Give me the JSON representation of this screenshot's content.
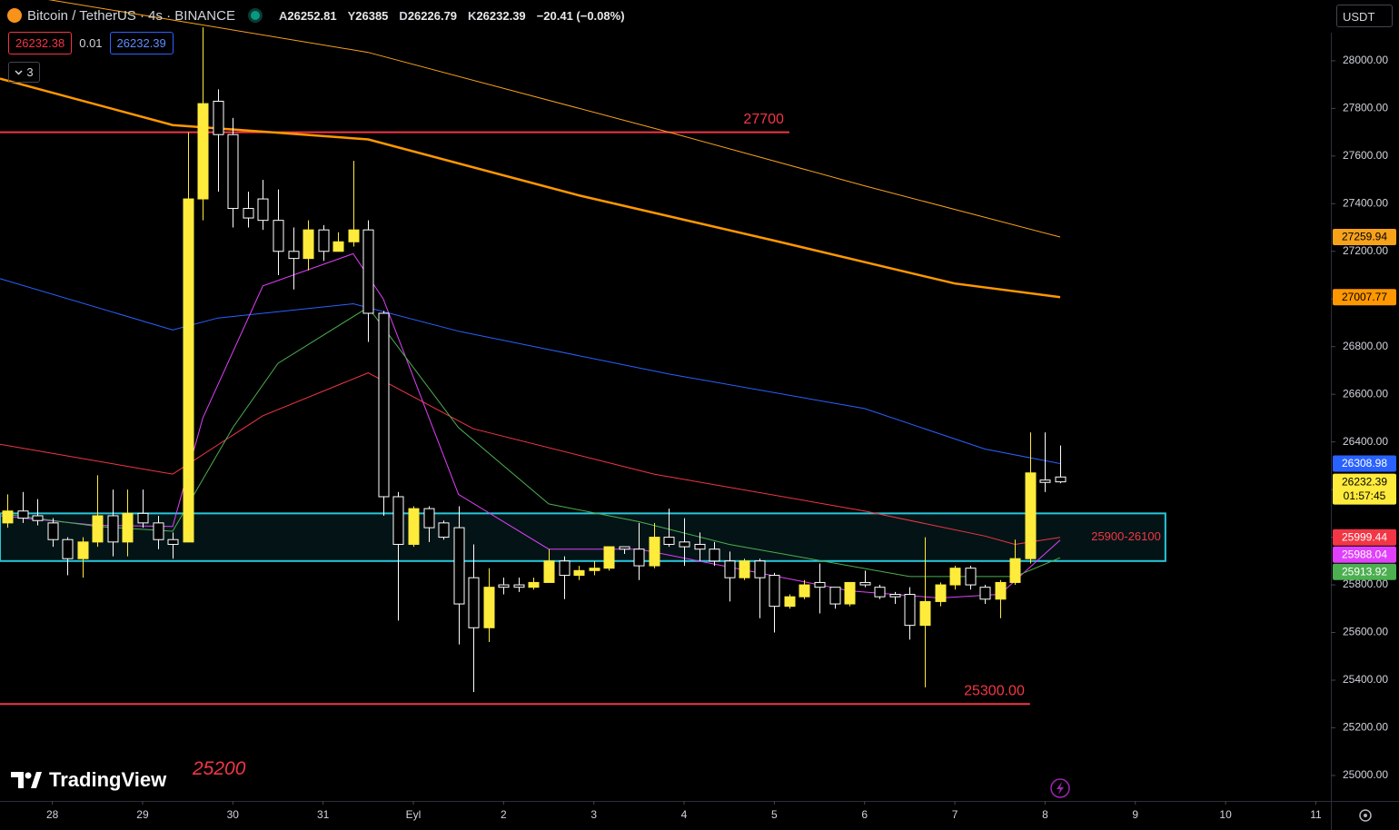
{
  "chart_data": {
    "type": "candlestick",
    "title": "Bitcoin / TetherUS · 4s · BINANCE",
    "ohlc_labels": [
      "A",
      "Y",
      "D",
      "K"
    ],
    "change": "−20.41 (−0.08%)",
    "currency": "USDT",
    "countdown": "01:57:45",
    "up_color": "#ffeb3b",
    "down_color": "#ffffff",
    "open": [
      26060,
      26110,
      26090,
      26060,
      25990,
      25910,
      25980,
      26090,
      25980,
      26100,
      26060,
      25990,
      25980,
      27420,
      27830,
      27690,
      27380,
      27420,
      27330,
      27200,
      27170,
      27290,
      27200,
      27240,
      27290,
      26940,
      26170,
      25970,
      26120,
      26060,
      26040,
      25830,
      25620,
      25800,
      25800,
      25790,
      25810,
      25900,
      25840,
      25860,
      25870,
      25960,
      25950,
      25880,
      26000,
      25980,
      25970,
      25950,
      25900,
      25830,
      25900,
      25840,
      25710,
      25750,
      25810,
      25790,
      25720,
      25810,
      25790,
      25760,
      25760,
      25630,
      25730,
      25800,
      25870,
      25790,
      25740,
      25810,
      25910,
      26240,
      26252.81
    ],
    "high": [
      26180,
      26190,
      26160,
      26080,
      26000,
      26000,
      26260,
      26200,
      26200,
      26200,
      26090,
      26020,
      27700,
      28140,
      27880,
      27760,
      27450,
      27500,
      27460,
      27300,
      27330,
      27310,
      27280,
      27580,
      27330,
      26950,
      26190,
      26130,
      26130,
      26070,
      26130,
      25970,
      25870,
      25830,
      25830,
      25830,
      25950,
      25920,
      25880,
      25900,
      25960,
      25960,
      26060,
      26060,
      26120,
      26080,
      26020,
      25980,
      25940,
      25910,
      25910,
      25850,
      25760,
      25820,
      25890,
      25790,
      25810,
      25860,
      25800,
      25770,
      25790,
      26000,
      25810,
      25880,
      25880,
      25800,
      25820,
      25990,
      26440,
      26440,
      26385
    ],
    "low": [
      26040,
      26060,
      26050,
      25960,
      25840,
      25830,
      25960,
      25920,
      25920,
      26040,
      25950,
      25910,
      25980,
      27330,
      27450,
      27300,
      27300,
      27290,
      27100,
      27040,
      27120,
      27160,
      27200,
      27220,
      26820,
      26090,
      25650,
      25960,
      25980,
      25990,
      25550,
      25350,
      25560,
      25760,
      25770,
      25780,
      25810,
      25740,
      25820,
      25840,
      25860,
      25930,
      25820,
      25870,
      25960,
      25880,
      25900,
      25880,
      25730,
      25820,
      25660,
      25600,
      25700,
      25740,
      25680,
      25700,
      25710,
      25790,
      25740,
      25720,
      25570,
      25370,
      25710,
      25780,
      25780,
      25720,
      25660,
      25800,
      25890,
      26190,
      26226.79
    ],
    "close": [
      26110,
      26080,
      26070,
      25990,
      25910,
      25980,
      26090,
      25980,
      26100,
      26060,
      25990,
      25970,
      27420,
      27820,
      27690,
      27380,
      27340,
      27330,
      27200,
      27170,
      27290,
      27200,
      27240,
      27290,
      26940,
      26170,
      25970,
      26120,
      26040,
      26000,
      25720,
      25620,
      25790,
      25790,
      25790,
      25810,
      25900,
      25840,
      25860,
      25870,
      25960,
      25950,
      25880,
      26000,
      25970,
      25960,
      25950,
      25900,
      25830,
      25900,
      25830,
      25710,
      25750,
      25800,
      25790,
      25720,
      25810,
      25800,
      25750,
      25750,
      25630,
      25730,
      25800,
      25870,
      25800,
      25740,
      25810,
      25910,
      26270,
      26230,
      26232.39
    ],
    "xlim": [
      -0.48,
      88
    ],
    "xticks": [
      {
        "value": 3,
        "label": "28"
      },
      {
        "value": 9,
        "label": "29"
      },
      {
        "value": 15,
        "label": "30"
      },
      {
        "value": 21,
        "label": "31"
      },
      {
        "value": 27,
        "label": "Eyl"
      },
      {
        "value": 33,
        "label": "2"
      },
      {
        "value": 39,
        "label": "3"
      },
      {
        "value": 45,
        "label": "4"
      },
      {
        "value": 51,
        "label": "5"
      },
      {
        "value": 57,
        "label": "6"
      },
      {
        "value": 63,
        "label": "7"
      },
      {
        "value": 69,
        "label": "8"
      },
      {
        "value": 75,
        "label": "9"
      },
      {
        "value": 81,
        "label": "10"
      },
      {
        "value": 87,
        "label": "11"
      }
    ],
    "ylim": [
      24893,
      28255
    ],
    "yticks": [
      {
        "value": 25000,
        "label": "25000.00"
      },
      {
        "value": 25200,
        "label": "25200.00"
      },
      {
        "value": 25400,
        "label": "25400.00"
      },
      {
        "value": 25600,
        "label": "25600.00"
      },
      {
        "value": 25800,
        "label": "25800.00"
      },
      {
        "value": 26000,
        "label": "26000.00"
      },
      {
        "value": 26200,
        "label": "26200.00"
      },
      {
        "value": 26400,
        "label": "26400.00"
      },
      {
        "value": 26600,
        "label": "26600.00"
      },
      {
        "value": 26800,
        "label": "26800.00"
      },
      {
        "value": 27000,
        "label": "27000.00"
      },
      {
        "value": 27200,
        "label": "27200.00"
      },
      {
        "value": 27400,
        "label": "27400.00"
      },
      {
        "value": 27600,
        "label": "27600.00"
      },
      {
        "value": 27800,
        "label": "27800.00"
      },
      {
        "value": 28000,
        "label": "28000.00"
      }
    ],
    "series": [
      {
        "color": "#f7a21b",
        "width": 1,
        "x": [
          -0.48,
          13,
          24,
          44,
          57,
          70
        ],
        "values": [
          28290,
          28150,
          28035,
          27700,
          27475,
          27259.94
        ]
      },
      {
        "color": "#ff9800",
        "width": 2.5,
        "x": [
          -0.48,
          11,
          24,
          38,
          51,
          63,
          70
        ],
        "values": [
          27925,
          27730,
          27670,
          27435,
          27245,
          27065,
          27007.77
        ]
      },
      {
        "color": "#2962ff",
        "width": 1,
        "x": [
          -0.48,
          11,
          14,
          23,
          30,
          44,
          57,
          65,
          70
        ],
        "values": [
          27085,
          26870,
          26920,
          26980,
          26865,
          26685,
          26540,
          26370,
          26308.98
        ]
      },
      {
        "color": "#f23645",
        "width": 1,
        "x": [
          -0.48,
          11,
          17,
          24,
          31,
          43,
          57,
          65,
          67,
          70
        ],
        "values": [
          26390,
          26265,
          26510,
          26690,
          26455,
          26265,
          26110,
          26005,
          25970,
          25999.44
        ]
      },
      {
        "color": "#e040fb",
        "width": 1,
        "x": [
          -0.48,
          6,
          11,
          13,
          17,
          23,
          25,
          30,
          36,
          42,
          48,
          56,
          62,
          66,
          70
        ],
        "values": [
          26090,
          26050,
          26045,
          26500,
          27055,
          27190,
          27000,
          26180,
          25950,
          25950,
          25875,
          25775,
          25745,
          25760,
          25988.04
        ]
      },
      {
        "color": "#4caf50",
        "width": 1,
        "x": [
          -0.48,
          6,
          11,
          15,
          18,
          24,
          30,
          36,
          42,
          48,
          60,
          67,
          70
        ],
        "values": [
          26100,
          26045,
          26025,
          26460,
          26730,
          26965,
          26460,
          26140,
          26065,
          25970,
          25835,
          25835,
          25913.92
        ]
      }
    ],
    "levels": [
      {
        "value": 27700,
        "color": "#f23645",
        "x_end": 52
      },
      {
        "value": 25300,
        "label": "25300.00",
        "color": "#f23645",
        "x_end": 68
      }
    ],
    "zone": {
      "label": "25900-26100",
      "low": 25900,
      "high": 26100,
      "x_end": 77,
      "color": "#26c6da"
    },
    "annotations": [
      "25200"
    ]
  },
  "toolbar": {
    "bid": "26232.38",
    "spread": 0.01,
    "ask": "26232.39",
    "indicators": 3
  },
  "watermark": "TradingView"
}
